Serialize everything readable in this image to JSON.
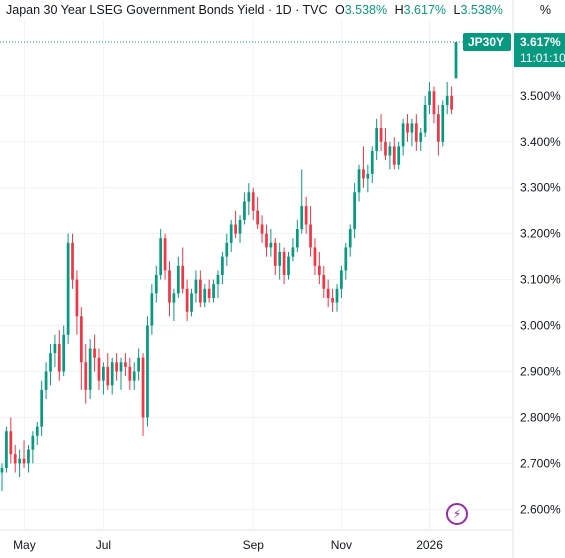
{
  "header": {
    "title": "Japan 30 Year LSEG Government Bonds Yield · 1D · TVC",
    "open_label": "O",
    "open_value": "3.538%",
    "high_label": "H",
    "high_value": "3.617%",
    "low_label": "L",
    "low_value": "3.538%"
  },
  "unit_label": "%",
  "price_badge": {
    "symbol": "JP30Y",
    "value": "3.617%",
    "countdown": "11:01:10"
  },
  "colors": {
    "up": "#089981",
    "down": "#f23645",
    "badge": "#089981",
    "alert": "#9c27b0",
    "grid": "#f0f3fa"
  },
  "icons": {
    "alert": "lightning-icon"
  },
  "chart_data": {
    "type": "candlestick",
    "title": "Japan 30 Year LSEG Government Bonds Yield",
    "interval": "1D",
    "source": "TVC",
    "ylabel": "%",
    "ylim": [
      2.555,
      3.665
    ],
    "y_ticks": [
      "3.500%",
      "3.400%",
      "3.300%",
      "3.200%",
      "3.100%",
      "3.000%",
      "2.900%",
      "2.800%",
      "2.700%",
      "2.600%"
    ],
    "x_ticks": [
      "May",
      "Jul",
      "Sep",
      "Nov",
      "2026"
    ],
    "grid": true,
    "last_price": 3.617,
    "candles": [
      {
        "o": 2.68,
        "h": 2.7,
        "l": 2.64,
        "c": 2.69
      },
      {
        "o": 2.69,
        "h": 2.78,
        "l": 2.68,
        "c": 2.77
      },
      {
        "o": 2.77,
        "h": 2.8,
        "l": 2.7,
        "c": 2.72
      },
      {
        "o": 2.72,
        "h": 2.74,
        "l": 2.68,
        "c": 2.7
      },
      {
        "o": 2.7,
        "h": 2.73,
        "l": 2.67,
        "c": 2.71
      },
      {
        "o": 2.71,
        "h": 2.75,
        "l": 2.69,
        "c": 2.7
      },
      {
        "o": 2.7,
        "h": 2.74,
        "l": 2.68,
        "c": 2.73
      },
      {
        "o": 2.73,
        "h": 2.77,
        "l": 2.7,
        "c": 2.76
      },
      {
        "o": 2.76,
        "h": 2.79,
        "l": 2.74,
        "c": 2.78
      },
      {
        "o": 2.78,
        "h": 2.88,
        "l": 2.76,
        "c": 2.86
      },
      {
        "o": 2.86,
        "h": 2.92,
        "l": 2.84,
        "c": 2.9
      },
      {
        "o": 2.9,
        "h": 2.96,
        "l": 2.87,
        "c": 2.94
      },
      {
        "o": 2.94,
        "h": 2.98,
        "l": 2.91,
        "c": 2.96
      },
      {
        "o": 2.96,
        "h": 2.99,
        "l": 2.88,
        "c": 2.9
      },
      {
        "o": 2.9,
        "h": 3.0,
        "l": 2.89,
        "c": 2.98
      },
      {
        "o": 2.98,
        "h": 3.2,
        "l": 2.96,
        "c": 3.18
      },
      {
        "o": 3.18,
        "h": 3.2,
        "l": 3.08,
        "c": 3.1
      },
      {
        "o": 3.1,
        "h": 3.12,
        "l": 2.98,
        "c": 3.02
      },
      {
        "o": 3.02,
        "h": 3.04,
        "l": 2.86,
        "c": 2.92
      },
      {
        "o": 2.92,
        "h": 2.96,
        "l": 2.83,
        "c": 2.86
      },
      {
        "o": 2.86,
        "h": 2.97,
        "l": 2.84,
        "c": 2.95
      },
      {
        "o": 2.95,
        "h": 2.98,
        "l": 2.9,
        "c": 2.93
      },
      {
        "o": 2.93,
        "h": 2.95,
        "l": 2.86,
        "c": 2.88
      },
      {
        "o": 2.88,
        "h": 2.92,
        "l": 2.85,
        "c": 2.91
      },
      {
        "o": 2.91,
        "h": 2.94,
        "l": 2.86,
        "c": 2.87
      },
      {
        "o": 2.87,
        "h": 2.93,
        "l": 2.85,
        "c": 2.92
      },
      {
        "o": 2.92,
        "h": 2.94,
        "l": 2.88,
        "c": 2.9
      },
      {
        "o": 2.9,
        "h": 2.93,
        "l": 2.86,
        "c": 2.92
      },
      {
        "o": 2.92,
        "h": 2.94,
        "l": 2.89,
        "c": 2.91
      },
      {
        "o": 2.91,
        "h": 2.93,
        "l": 2.86,
        "c": 2.88
      },
      {
        "o": 2.88,
        "h": 2.92,
        "l": 2.86,
        "c": 2.9
      },
      {
        "o": 2.9,
        "h": 2.95,
        "l": 2.88,
        "c": 2.93
      },
      {
        "o": 2.93,
        "h": 2.94,
        "l": 2.76,
        "c": 2.8
      },
      {
        "o": 2.8,
        "h": 3.02,
        "l": 2.78,
        "c": 3.0
      },
      {
        "o": 3.0,
        "h": 3.09,
        "l": 2.98,
        "c": 3.07
      },
      {
        "o": 3.07,
        "h": 3.13,
        "l": 3.05,
        "c": 3.11
      },
      {
        "o": 3.11,
        "h": 3.21,
        "l": 3.1,
        "c": 3.19
      },
      {
        "o": 3.19,
        "h": 3.2,
        "l": 3.1,
        "c": 3.12
      },
      {
        "o": 3.12,
        "h": 3.14,
        "l": 3.02,
        "c": 3.05
      },
      {
        "o": 3.05,
        "h": 3.08,
        "l": 3.01,
        "c": 3.07
      },
      {
        "o": 3.07,
        "h": 3.15,
        "l": 3.06,
        "c": 3.13
      },
      {
        "o": 3.13,
        "h": 3.17,
        "l": 3.07,
        "c": 3.08
      },
      {
        "o": 3.08,
        "h": 3.1,
        "l": 3.01,
        "c": 3.03
      },
      {
        "o": 3.03,
        "h": 3.08,
        "l": 3.02,
        "c": 3.07
      },
      {
        "o": 3.07,
        "h": 3.12,
        "l": 3.05,
        "c": 3.1
      },
      {
        "o": 3.1,
        "h": 3.12,
        "l": 3.04,
        "c": 3.05
      },
      {
        "o": 3.05,
        "h": 3.09,
        "l": 3.04,
        "c": 3.08
      },
      {
        "o": 3.08,
        "h": 3.1,
        "l": 3.05,
        "c": 3.06
      },
      {
        "o": 3.06,
        "h": 3.1,
        "l": 3.05,
        "c": 3.09
      },
      {
        "o": 3.09,
        "h": 3.12,
        "l": 3.06,
        "c": 3.11
      },
      {
        "o": 3.11,
        "h": 3.16,
        "l": 3.09,
        "c": 3.15
      },
      {
        "o": 3.15,
        "h": 3.2,
        "l": 3.13,
        "c": 3.18
      },
      {
        "o": 3.18,
        "h": 3.23,
        "l": 3.16,
        "c": 3.22
      },
      {
        "o": 3.22,
        "h": 3.25,
        "l": 3.19,
        "c": 3.2
      },
      {
        "o": 3.2,
        "h": 3.24,
        "l": 3.18,
        "c": 3.23
      },
      {
        "o": 3.23,
        "h": 3.29,
        "l": 3.22,
        "c": 3.27
      },
      {
        "o": 3.27,
        "h": 3.31,
        "l": 3.24,
        "c": 3.29
      },
      {
        "o": 3.29,
        "h": 3.3,
        "l": 3.23,
        "c": 3.25
      },
      {
        "o": 3.25,
        "h": 3.28,
        "l": 3.21,
        "c": 3.22
      },
      {
        "o": 3.22,
        "h": 3.24,
        "l": 3.18,
        "c": 3.2
      },
      {
        "o": 3.2,
        "h": 3.22,
        "l": 3.15,
        "c": 3.17
      },
      {
        "o": 3.17,
        "h": 3.21,
        "l": 3.15,
        "c": 3.18
      },
      {
        "o": 3.18,
        "h": 3.19,
        "l": 3.11,
        "c": 3.13
      },
      {
        "o": 3.13,
        "h": 3.18,
        "l": 3.1,
        "c": 3.16
      },
      {
        "o": 3.16,
        "h": 3.17,
        "l": 3.09,
        "c": 3.11
      },
      {
        "o": 3.11,
        "h": 3.16,
        "l": 3.1,
        "c": 3.15
      },
      {
        "o": 3.15,
        "h": 3.19,
        "l": 3.14,
        "c": 3.17
      },
      {
        "o": 3.17,
        "h": 3.23,
        "l": 3.16,
        "c": 3.21
      },
      {
        "o": 3.21,
        "h": 3.34,
        "l": 3.2,
        "c": 3.26
      },
      {
        "o": 3.26,
        "h": 3.28,
        "l": 3.2,
        "c": 3.22
      },
      {
        "o": 3.22,
        "h": 3.26,
        "l": 3.15,
        "c": 3.17
      },
      {
        "o": 3.17,
        "h": 3.19,
        "l": 3.11,
        "c": 3.13
      },
      {
        "o": 3.13,
        "h": 3.16,
        "l": 3.09,
        "c": 3.11
      },
      {
        "o": 3.11,
        "h": 3.13,
        "l": 3.06,
        "c": 3.08
      },
      {
        "o": 3.08,
        "h": 3.1,
        "l": 3.04,
        "c": 3.06
      },
      {
        "o": 3.06,
        "h": 3.08,
        "l": 3.03,
        "c": 3.05
      },
      {
        "o": 3.05,
        "h": 3.09,
        "l": 3.03,
        "c": 3.08
      },
      {
        "o": 3.08,
        "h": 3.13,
        "l": 3.06,
        "c": 3.12
      },
      {
        "o": 3.12,
        "h": 3.18,
        "l": 3.1,
        "c": 3.17
      },
      {
        "o": 3.17,
        "h": 3.22,
        "l": 3.15,
        "c": 3.21
      },
      {
        "o": 3.21,
        "h": 3.31,
        "l": 3.19,
        "c": 3.29
      },
      {
        "o": 3.29,
        "h": 3.35,
        "l": 3.27,
        "c": 3.34
      },
      {
        "o": 3.34,
        "h": 3.39,
        "l": 3.3,
        "c": 3.32
      },
      {
        "o": 3.32,
        "h": 3.35,
        "l": 3.29,
        "c": 3.33
      },
      {
        "o": 3.33,
        "h": 3.39,
        "l": 3.31,
        "c": 3.38
      },
      {
        "o": 3.38,
        "h": 3.45,
        "l": 3.36,
        "c": 3.43
      },
      {
        "o": 3.43,
        "h": 3.46,
        "l": 3.38,
        "c": 3.4
      },
      {
        "o": 3.4,
        "h": 3.43,
        "l": 3.36,
        "c": 3.37
      },
      {
        "o": 3.37,
        "h": 3.4,
        "l": 3.34,
        "c": 3.39
      },
      {
        "o": 3.39,
        "h": 3.41,
        "l": 3.34,
        "c": 3.35
      },
      {
        "o": 3.35,
        "h": 3.4,
        "l": 3.34,
        "c": 3.39
      },
      {
        "o": 3.39,
        "h": 3.45,
        "l": 3.37,
        "c": 3.44
      },
      {
        "o": 3.44,
        "h": 3.46,
        "l": 3.4,
        "c": 3.42
      },
      {
        "o": 3.42,
        "h": 3.45,
        "l": 3.39,
        "c": 3.44
      },
      {
        "o": 3.44,
        "h": 3.46,
        "l": 3.38,
        "c": 3.4
      },
      {
        "o": 3.4,
        "h": 3.43,
        "l": 3.38,
        "c": 3.42
      },
      {
        "o": 3.42,
        "h": 3.5,
        "l": 3.41,
        "c": 3.48
      },
      {
        "o": 3.48,
        "h": 3.53,
        "l": 3.46,
        "c": 3.51
      },
      {
        "o": 3.51,
        "h": 3.52,
        "l": 3.44,
        "c": 3.46
      },
      {
        "o": 3.46,
        "h": 3.48,
        "l": 3.37,
        "c": 3.4
      },
      {
        "o": 3.4,
        "h": 3.49,
        "l": 3.39,
        "c": 3.48
      },
      {
        "o": 3.48,
        "h": 3.53,
        "l": 3.46,
        "c": 3.5
      },
      {
        "o": 3.5,
        "h": 3.52,
        "l": 3.46,
        "c": 3.47
      },
      {
        "o": 3.538,
        "h": 3.617,
        "l": 3.538,
        "c": 3.617
      }
    ]
  }
}
